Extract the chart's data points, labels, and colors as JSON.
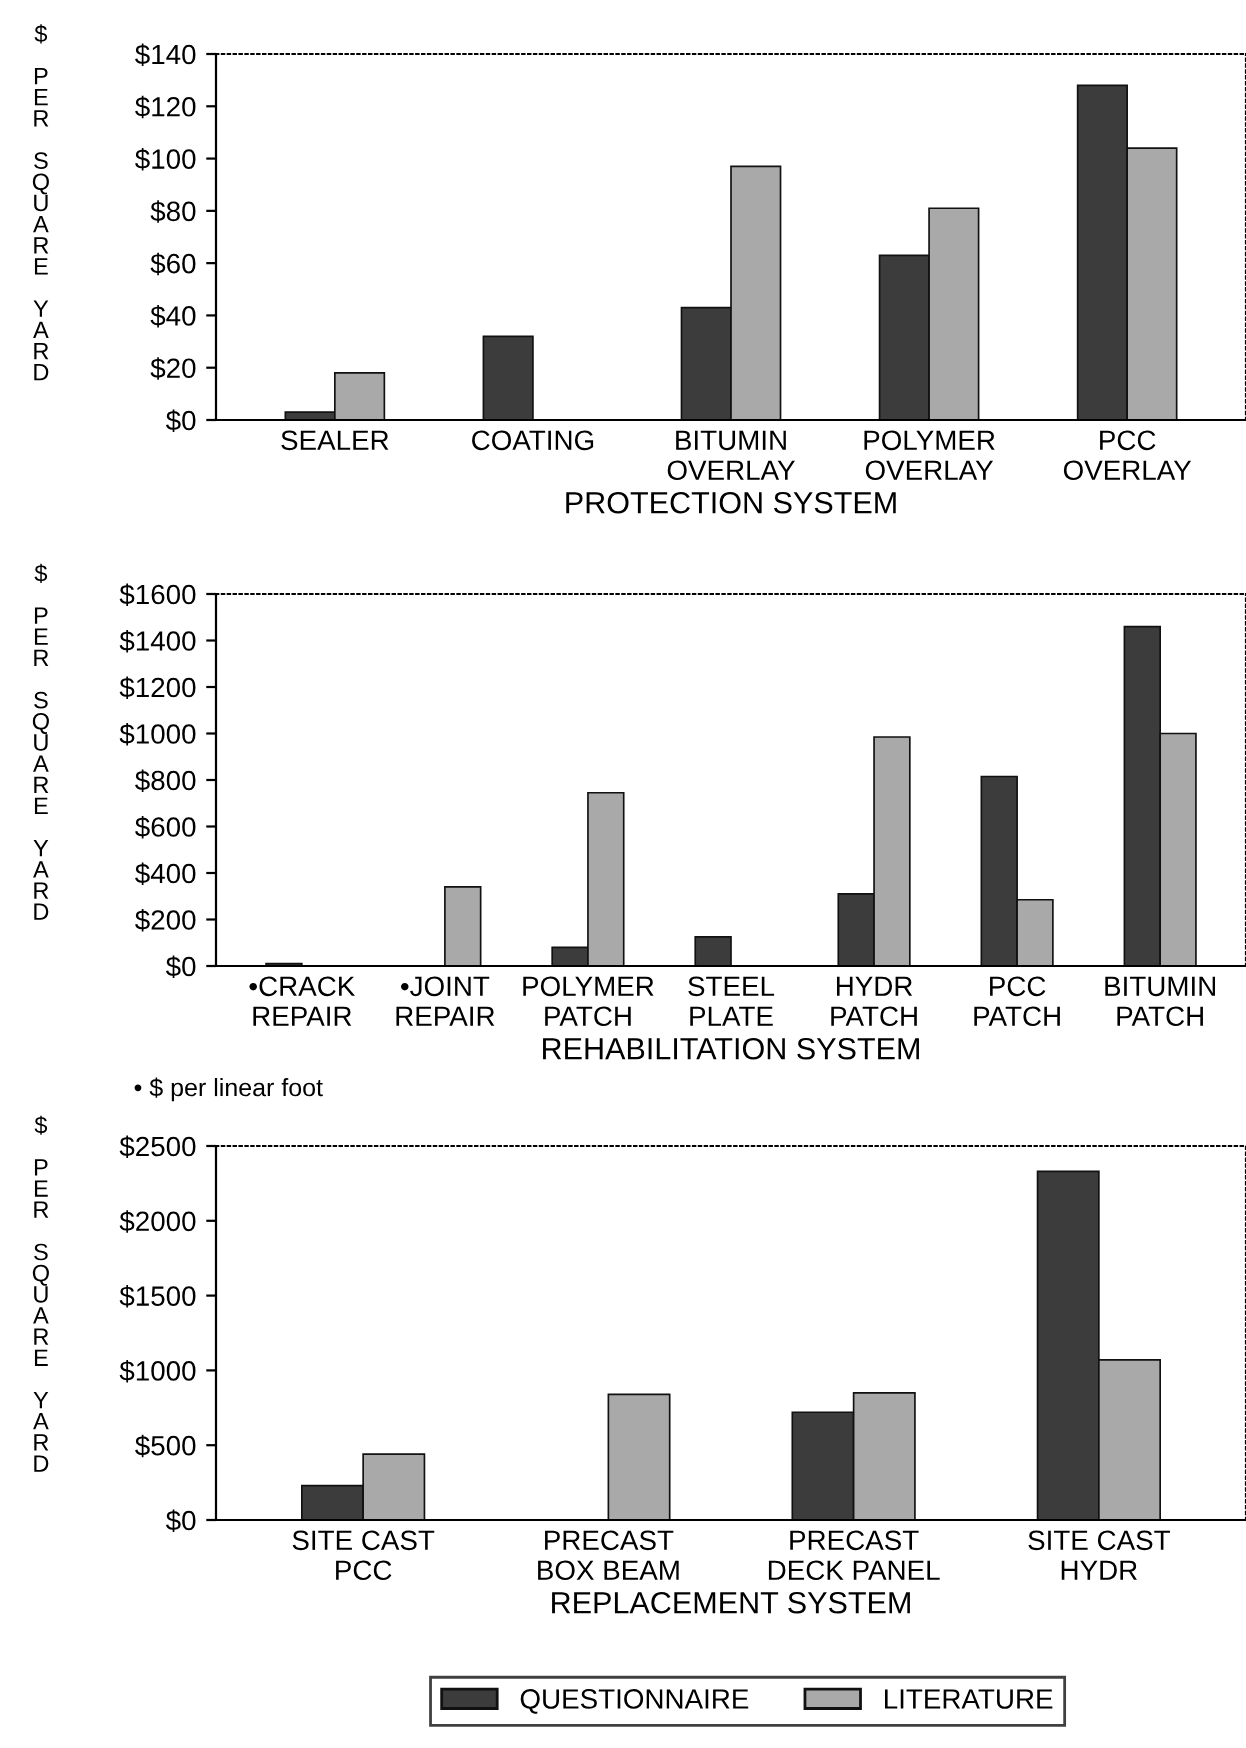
{
  "chart_data": [
    {
      "type": "bar",
      "xlabel": "PROTECTION SYSTEM",
      "ylabel": "$ PER SQUARE YARD",
      "categories": [
        "SEALER",
        "COATING",
        "BITUMIN\nOVERLAY",
        "POLYMER\nOVERLAY",
        "PCC\nOVERLAY"
      ],
      "series": [
        {
          "color": "#3c3c3c",
          "values": [
            3,
            32,
            43,
            63,
            128
          ]
        },
        {
          "color": "#a9a9a9",
          "values": [
            18,
            null,
            97,
            81,
            104
          ]
        }
      ],
      "ylim": [
        0,
        140
      ],
      "yticks": [
        {
          "value": 0,
          "label": "$0"
        },
        {
          "value": 20,
          "label": "$20"
        },
        {
          "value": 40,
          "label": "$40"
        },
        {
          "value": 60,
          "label": "$60"
        },
        {
          "value": 80,
          "label": "$80"
        },
        {
          "value": 100,
          "label": "$100"
        },
        {
          "value": 120,
          "label": "$120"
        },
        {
          "value": 140,
          "label": "$140"
        }
      ],
      "grid": false,
      "legend": false
    },
    {
      "type": "bar",
      "xlabel": "REHABILITATION SYSTEM",
      "ylabel": "$ PER SQUARE YARD",
      "categories": [
        "•CRACK\nREPAIR",
        "•JOINT\nREPAIR",
        "POLYMER\nPATCH",
        "STEEL\nPLATE",
        "HYDR\nPATCH",
        "PCC\nPATCH",
        "BITUMIN\nPATCH"
      ],
      "series": [
        {
          "color": "#3c3c3c",
          "values": [
            10,
            null,
            80,
            125,
            310,
            815,
            1460
          ]
        },
        {
          "color": "#a9a9a9",
          "values": [
            null,
            340,
            745,
            null,
            985,
            285,
            1000
          ]
        }
      ],
      "ylim": [
        0,
        1600
      ],
      "yticks": [
        {
          "value": 0,
          "label": "$0"
        },
        {
          "value": 200,
          "label": "$200"
        },
        {
          "value": 400,
          "label": "$400"
        },
        {
          "value": 600,
          "label": "$600"
        },
        {
          "value": 800,
          "label": "$800"
        },
        {
          "value": 1000,
          "label": "$1000"
        },
        {
          "value": 1200,
          "label": "$1200"
        },
        {
          "value": 1400,
          "label": "$1400"
        },
        {
          "value": 1600,
          "label": "$1600"
        }
      ],
      "annotations": [
        "• $ per linear foot"
      ],
      "grid": false,
      "legend": false
    },
    {
      "type": "bar",
      "xlabel": "REPLACEMENT SYSTEM",
      "ylabel": "$ PER SQUARE YARD",
      "categories": [
        "SITE CAST\nPCC",
        "PRECAST\nBOX BEAM",
        "PRECAST\nDECK PANEL",
        "SITE CAST\nHYDR"
      ],
      "series": [
        {
          "name": "QUESTIONNAIRE",
          "color": "#3c3c3c",
          "values": [
            230,
            null,
            720,
            2330
          ]
        },
        {
          "name": "LITERATURE",
          "color": "#a9a9a9",
          "values": [
            440,
            840,
            850,
            1070
          ]
        }
      ],
      "ylim": [
        0,
        2500
      ],
      "yticks": [
        {
          "value": 0,
          "label": "$0"
        },
        {
          "value": 500,
          "label": "$500"
        },
        {
          "value": 1000,
          "label": "$1000"
        },
        {
          "value": 1500,
          "label": "$1500"
        },
        {
          "value": 2000,
          "label": "$2000"
        },
        {
          "value": 2500,
          "label": "$2500"
        }
      ],
      "grid": false,
      "legend": "bottom"
    }
  ]
}
